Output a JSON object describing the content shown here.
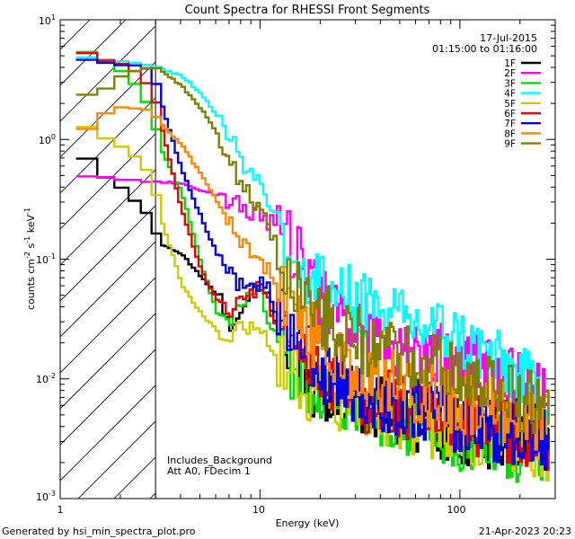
{
  "chart_data": {
    "type": "line",
    "title": "Count Spectra for RHESSI Front Segments",
    "xlabel": "Energy (keV)",
    "ylabel_parts": [
      "counts cm",
      "-2",
      " s",
      "-1",
      " keV",
      "-1"
    ],
    "xscale": "log",
    "yscale": "log",
    "xlim": [
      1,
      300
    ],
    "ylim": [
      0.001,
      10
    ],
    "x_tick_labels": [
      "1",
      "10",
      "100"
    ],
    "y_tick_labels": [
      {
        "base": "10",
        "exp": "1"
      },
      {
        "base": "10",
        "exp": "0"
      },
      {
        "base": "10",
        "exp": "-1"
      },
      {
        "base": "10",
        "exp": "-2"
      },
      {
        "base": "10",
        "exp": "-3"
      }
    ],
    "date": "17-Jul-2015",
    "time_range": "01:15:00 to 01:16:00",
    "lower_energy_cutoff_kev": 3,
    "annotations": [
      "Includes_Background",
      "Att A0, FDecim 1"
    ],
    "series": [
      {
        "name": "1F",
        "color": "#000000",
        "points": [
          [
            1.2,
            0.68
          ],
          [
            1.5,
            0.5
          ],
          [
            2.0,
            0.36
          ],
          [
            2.5,
            0.25
          ],
          [
            3.0,
            0.14
          ],
          [
            4.0,
            0.11
          ],
          [
            5.0,
            0.07
          ],
          [
            6.0,
            0.05
          ],
          [
            7.0,
            0.03
          ],
          [
            8.0,
            0.036
          ],
          [
            9.0,
            0.05
          ],
          [
            10.0,
            0.06
          ],
          [
            12.0,
            0.03
          ],
          [
            15.0,
            0.012
          ],
          [
            20.0,
            0.008
          ],
          [
            30.0,
            0.006
          ],
          [
            50.0,
            0.005
          ],
          [
            80.0,
            0.004
          ],
          [
            120.0,
            0.0035
          ],
          [
            200.0,
            0.003
          ],
          [
            280.0,
            0.0025
          ]
        ]
      },
      {
        "name": "2F",
        "color": "#ff00ff",
        "points": [
          [
            1.2,
            0.5
          ],
          [
            1.5,
            0.48
          ],
          [
            2.0,
            0.46
          ],
          [
            2.5,
            0.45
          ],
          [
            3.0,
            0.45
          ],
          [
            4.0,
            0.42
          ],
          [
            5.0,
            0.38
          ],
          [
            6.0,
            0.34
          ],
          [
            7.0,
            0.3
          ],
          [
            8.0,
            0.27
          ],
          [
            10.0,
            0.23
          ],
          [
            12.0,
            0.18
          ],
          [
            15.0,
            0.11
          ],
          [
            20.0,
            0.05
          ],
          [
            30.0,
            0.027
          ],
          [
            50.0,
            0.018
          ],
          [
            80.0,
            0.016
          ],
          [
            120.0,
            0.013
          ],
          [
            200.0,
            0.009
          ],
          [
            280.0,
            0.006
          ]
        ]
      },
      {
        "name": "3F",
        "color": "#00dd00",
        "points": [
          [
            1.2,
            5.4
          ],
          [
            1.5,
            4.8
          ],
          [
            2.0,
            3.5
          ],
          [
            2.5,
            2.2
          ],
          [
            3.0,
            1.0
          ],
          [
            4.0,
            0.35
          ],
          [
            5.0,
            0.09
          ],
          [
            6.0,
            0.035
          ],
          [
            7.0,
            0.03
          ],
          [
            8.0,
            0.04
          ],
          [
            9.0,
            0.05
          ],
          [
            10.0,
            0.05
          ],
          [
            12.0,
            0.02
          ],
          [
            15.0,
            0.01
          ],
          [
            20.0,
            0.008
          ],
          [
            30.0,
            0.006
          ],
          [
            50.0,
            0.0045
          ],
          [
            80.0,
            0.0035
          ],
          [
            120.0,
            0.003
          ],
          [
            200.0,
            0.0025
          ],
          [
            280.0,
            0.002
          ]
        ]
      },
      {
        "name": "4F",
        "color": "#00ffff",
        "points": [
          [
            1.2,
            4.8
          ],
          [
            1.5,
            4.6
          ],
          [
            2.0,
            4.4
          ],
          [
            2.5,
            4.2
          ],
          [
            3.0,
            4.0
          ],
          [
            4.0,
            3.4
          ],
          [
            5.0,
            2.4
          ],
          [
            6.0,
            1.6
          ],
          [
            7.0,
            1.0
          ],
          [
            8.0,
            0.65
          ],
          [
            10.0,
            0.42
          ],
          [
            12.0,
            0.2
          ],
          [
            15.0,
            0.09
          ],
          [
            20.0,
            0.06
          ],
          [
            30.0,
            0.045
          ],
          [
            50.0,
            0.03
          ],
          [
            80.0,
            0.025
          ],
          [
            120.0,
            0.018
          ],
          [
            200.0,
            0.01
          ],
          [
            280.0,
            0.007
          ]
        ]
      },
      {
        "name": "5F",
        "color": "#cccc00",
        "points": [
          [
            1.2,
            1.3
          ],
          [
            1.5,
            1.05
          ],
          [
            2.0,
            0.8
          ],
          [
            2.5,
            0.6
          ],
          [
            3.0,
            0.28
          ],
          [
            4.0,
            0.06
          ],
          [
            5.0,
            0.035
          ],
          [
            6.0,
            0.025
          ],
          [
            7.0,
            0.02
          ],
          [
            8.0,
            0.03
          ],
          [
            10.0,
            0.025
          ],
          [
            12.0,
            0.015
          ],
          [
            15.0,
            0.01
          ],
          [
            20.0,
            0.007
          ],
          [
            30.0,
            0.0055
          ],
          [
            50.0,
            0.0045
          ],
          [
            80.0,
            0.004
          ],
          [
            120.0,
            0.0035
          ],
          [
            200.0,
            0.003
          ],
          [
            280.0,
            0.0025
          ]
        ]
      },
      {
        "name": "6F",
        "color": "#ee0000",
        "points": [
          [
            1.2,
            5.3
          ],
          [
            1.5,
            4.5
          ],
          [
            2.0,
            4.2
          ],
          [
            2.5,
            3.0
          ],
          [
            3.0,
            1.8
          ],
          [
            4.0,
            0.25
          ],
          [
            5.0,
            0.08
          ],
          [
            6.0,
            0.045
          ],
          [
            7.0,
            0.035
          ],
          [
            8.0,
            0.05
          ],
          [
            10.0,
            0.06
          ],
          [
            12.0,
            0.025
          ],
          [
            15.0,
            0.015
          ],
          [
            20.0,
            0.01
          ],
          [
            30.0,
            0.007
          ],
          [
            50.0,
            0.006
          ],
          [
            80.0,
            0.005
          ],
          [
            120.0,
            0.004
          ],
          [
            200.0,
            0.0035
          ],
          [
            280.0,
            0.003
          ]
        ]
      },
      {
        "name": "7F",
        "color": "#0000ee",
        "points": [
          [
            1.2,
            4.6
          ],
          [
            1.5,
            4.4
          ],
          [
            2.0,
            4.2
          ],
          [
            2.5,
            4.0
          ],
          [
            3.0,
            2.6
          ],
          [
            4.0,
            0.55
          ],
          [
            5.0,
            0.22
          ],
          [
            6.0,
            0.11
          ],
          [
            7.0,
            0.075
          ],
          [
            8.0,
            0.06
          ],
          [
            10.0,
            0.065
          ],
          [
            12.0,
            0.04
          ],
          [
            15.0,
            0.02
          ],
          [
            20.0,
            0.012
          ],
          [
            30.0,
            0.008
          ],
          [
            50.0,
            0.006
          ],
          [
            80.0,
            0.005
          ],
          [
            120.0,
            0.004
          ],
          [
            200.0,
            0.0035
          ],
          [
            280.0,
            0.003
          ]
        ]
      },
      {
        "name": "8F",
        "color": "#ff8800",
        "points": [
          [
            1.2,
            1.2
          ],
          [
            1.5,
            1.6
          ],
          [
            2.0,
            1.9
          ],
          [
            2.5,
            1.8
          ],
          [
            3.0,
            1.5
          ],
          [
            4.0,
            0.9
          ],
          [
            5.0,
            0.5
          ],
          [
            6.0,
            0.3
          ],
          [
            7.0,
            0.2
          ],
          [
            8.0,
            0.13
          ],
          [
            10.0,
            0.1
          ],
          [
            12.0,
            0.06
          ],
          [
            15.0,
            0.03
          ],
          [
            20.0,
            0.02
          ],
          [
            30.0,
            0.012
          ],
          [
            50.0,
            0.009
          ],
          [
            80.0,
            0.007
          ],
          [
            120.0,
            0.006
          ],
          [
            200.0,
            0.005
          ],
          [
            280.0,
            0.004
          ]
        ]
      },
      {
        "name": "9F",
        "color": "#808000",
        "points": [
          [
            1.2,
            2.4
          ],
          [
            1.5,
            2.6
          ],
          [
            2.0,
            3.6
          ],
          [
            2.5,
            4.0
          ],
          [
            3.0,
            3.9
          ],
          [
            4.0,
            2.8
          ],
          [
            5.0,
            1.8
          ],
          [
            6.0,
            1.1
          ],
          [
            7.0,
            0.7
          ],
          [
            8.0,
            0.4
          ],
          [
            10.0,
            0.25
          ],
          [
            12.0,
            0.13
          ],
          [
            15.0,
            0.06
          ],
          [
            20.0,
            0.035
          ],
          [
            30.0,
            0.022
          ],
          [
            50.0,
            0.015
          ],
          [
            80.0,
            0.012
          ],
          [
            120.0,
            0.01
          ],
          [
            200.0,
            0.007
          ],
          [
            280.0,
            0.005
          ]
        ]
      }
    ]
  },
  "footer": {
    "generated_by": "Generated by hsi_min_spectra_plot.pro",
    "timestamp": "21-Apr-2023 20:23"
  }
}
